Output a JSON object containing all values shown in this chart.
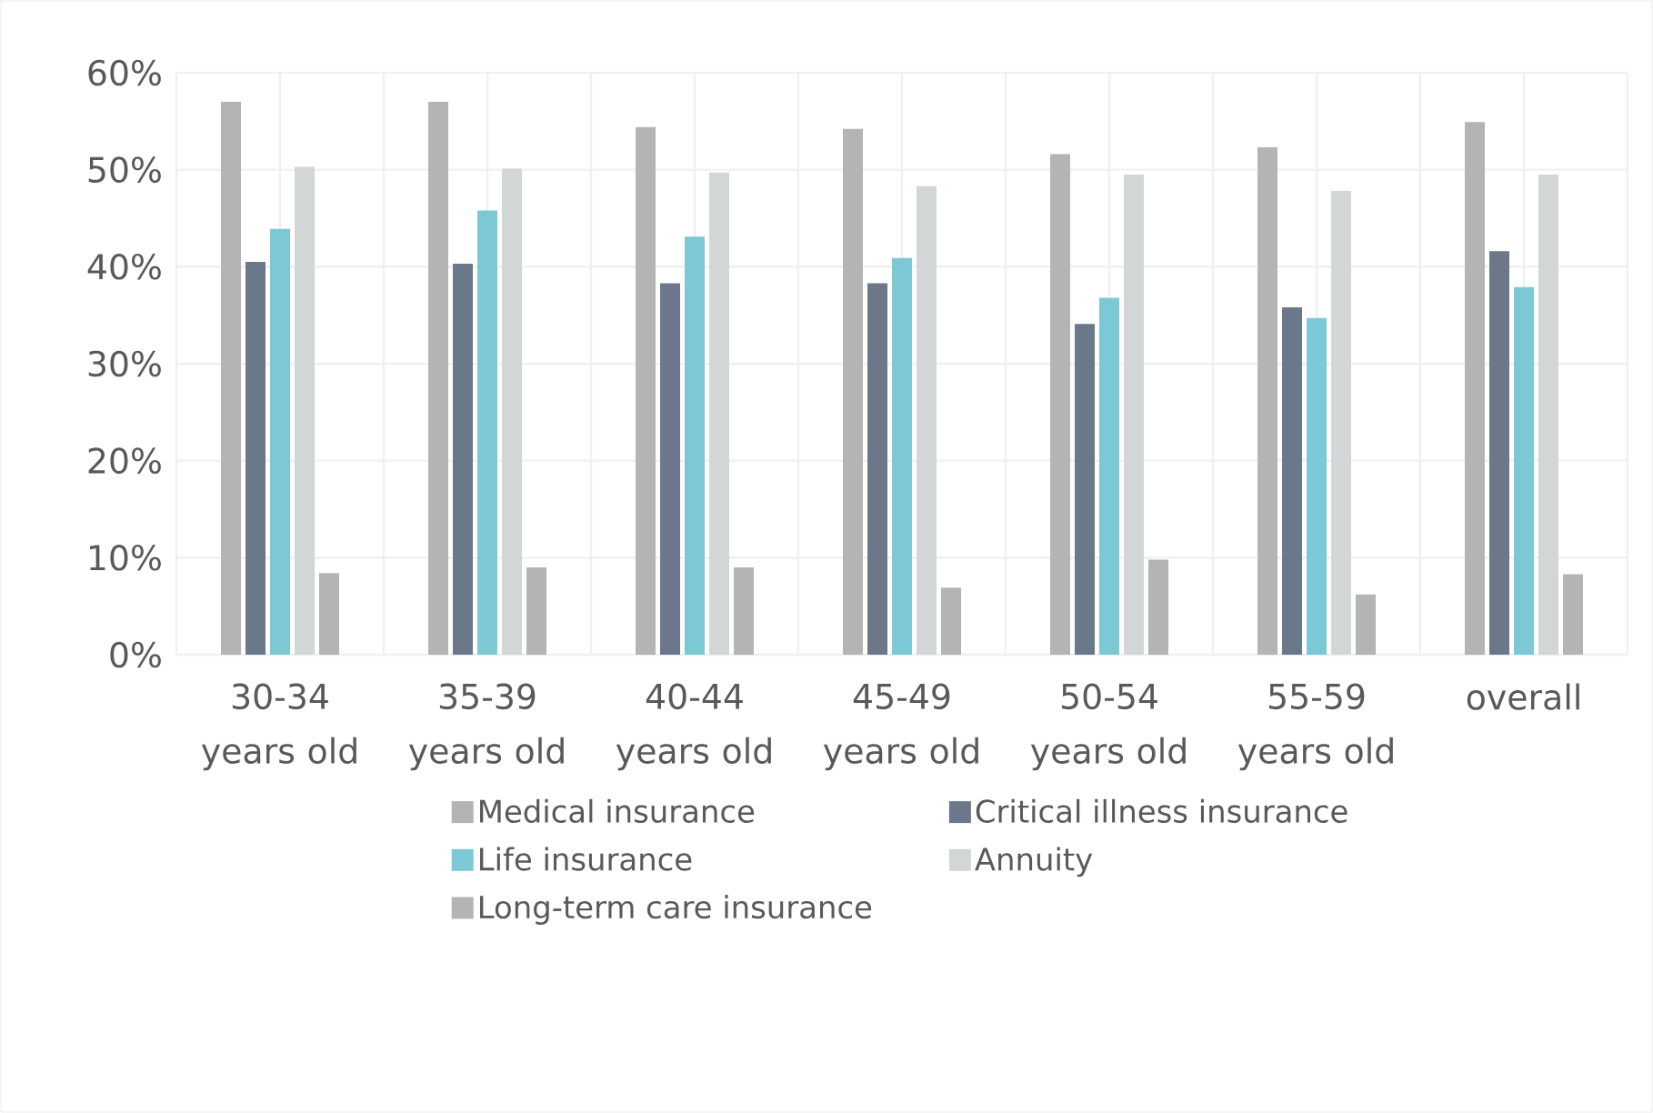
{
  "chart_data": {
    "type": "bar",
    "categories": [
      "30-34 years old",
      "35-39 years old",
      "40-44 years old",
      "45-49 years old",
      "50-54 years old",
      "55-59 years old",
      "overall"
    ],
    "series": [
      {
        "name": "Medical insurance",
        "color": "#b3b4b4",
        "values": [
          57.0,
          57.0,
          54.4,
          54.2,
          51.6,
          52.3,
          54.9
        ]
      },
      {
        "name": "Critical illness insurance",
        "color": "#6a7889",
        "values": [
          40.5,
          40.3,
          38.3,
          38.3,
          34.1,
          35.8,
          41.6
        ]
      },
      {
        "name": "Life insurance",
        "color": "#7cc8d5",
        "values": [
          43.9,
          45.8,
          43.1,
          40.9,
          36.8,
          34.7,
          37.9
        ]
      },
      {
        "name": "Annuity",
        "color": "#d3d6d7",
        "values": [
          50.3,
          50.1,
          49.7,
          48.3,
          49.5,
          47.8,
          49.5
        ]
      },
      {
        "name": "Long-term care insurance",
        "color": "#b3b4b4",
        "values": [
          8.4,
          9.0,
          9.0,
          6.9,
          9.8,
          6.2,
          8.3
        ]
      }
    ],
    "ylim": [
      0,
      60
    ],
    "yticks": [
      {
        "value": 0,
        "label": "0%"
      },
      {
        "value": 10,
        "label": "10%"
      },
      {
        "value": 20,
        "label": "20%"
      },
      {
        "value": 30,
        "label": "30%"
      },
      {
        "value": 40,
        "label": "40%"
      },
      {
        "value": 50,
        "label": "50%"
      },
      {
        "value": 60,
        "label": "60%"
      }
    ],
    "grid": true,
    "legend": "bottom"
  }
}
